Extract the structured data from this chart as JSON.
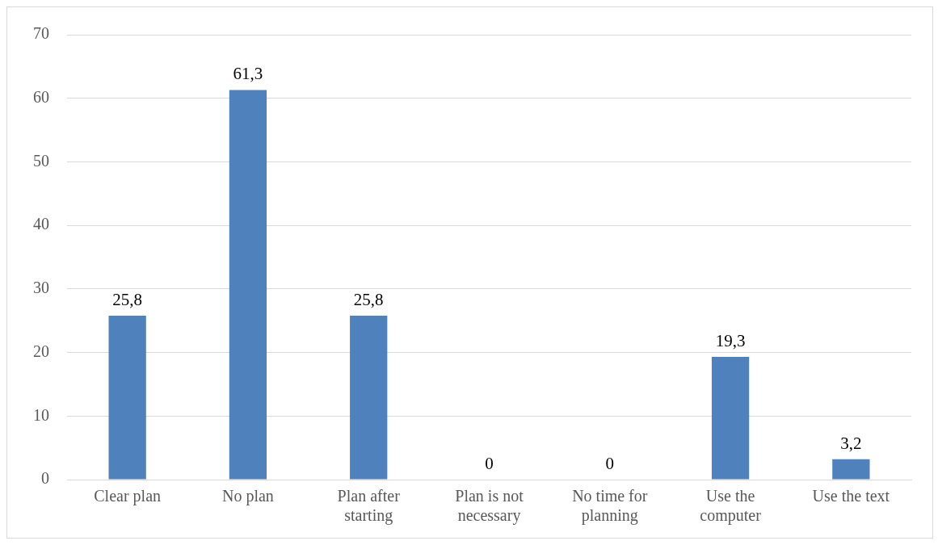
{
  "chart_data": {
    "type": "bar",
    "categories": [
      "Clear plan",
      "No plan",
      "Plan after starting",
      "Plan is not necessary",
      "No time for planning",
      "Use the computer",
      "Use the text"
    ],
    "values": [
      25.8,
      61.3,
      25.8,
      0,
      0,
      19.3,
      3.2
    ],
    "value_labels": [
      "25,8",
      "61,3",
      "25,8",
      "0",
      "0",
      "19,3",
      "3,2"
    ],
    "color": "#4f81bd",
    "ylim": [
      0,
      70
    ],
    "yticks": [
      0,
      10,
      20,
      30,
      40,
      50,
      60,
      70
    ],
    "grid": "y",
    "legend": false
  }
}
